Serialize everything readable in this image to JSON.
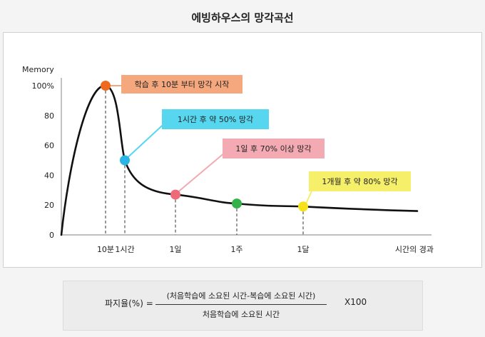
{
  "page": {
    "title": "에빙하우스의 망각곡선"
  },
  "chart_data": {
    "type": "line",
    "title": "에빙하우스의 망각곡선",
    "ylabel": "Memory",
    "xlabel": "시간의 경과",
    "ylim": [
      0,
      100
    ],
    "y_ticks": [
      "0",
      "20",
      "40",
      "60",
      "80",
      "100%"
    ],
    "x_ticks": [
      "10분",
      "1시간",
      "1일",
      "1주",
      "1달"
    ],
    "series": [
      {
        "values": [
          0,
          100,
          50,
          30,
          20,
          16
        ]
      }
    ],
    "points": [
      {
        "x": "10분",
        "y": 100,
        "color": "#ef6a1e",
        "label": "학습 후 10분 부터 망각 시작",
        "label_bg": "#f5a77e"
      },
      {
        "x": "1시간",
        "y": 50,
        "color": "#2ab5e6",
        "label": "1시간 후 약 50% 망각",
        "label_bg": "#57d6ef"
      },
      {
        "x": "1일",
        "y": 27,
        "color": "#ee6a78",
        "label": "1일 후 70% 이상 망각",
        "label_bg": "#f3aab2"
      },
      {
        "x": "1주",
        "y": 21,
        "color": "#33b24a",
        "label": "",
        "label_bg": ""
      },
      {
        "x": "1달",
        "y": 19,
        "color": "#f5e21a",
        "label": "1개월 후 약 80% 망각",
        "label_bg": "#f5ef6a"
      }
    ],
    "grid": false,
    "legend": "none"
  },
  "formula": {
    "label": "파지율(%) =",
    "numerator": "(처음학습에 소요된 시간-복습에 소요된 시간)",
    "denominator": "처음학습에 소요된 시간",
    "multiplier": "X100"
  }
}
